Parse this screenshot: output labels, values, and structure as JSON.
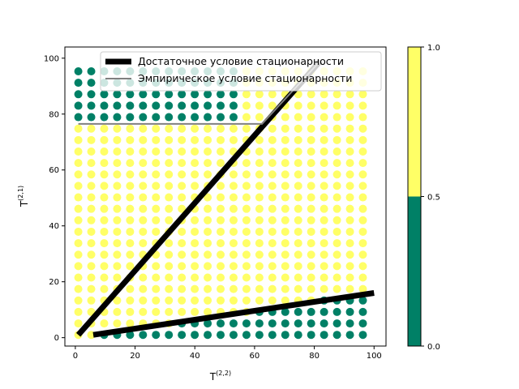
{
  "chart_data": {
    "type": "scatter",
    "title": "",
    "xlabel": "T",
    "xlabel_sup": "(2,2)",
    "ylabel": "T",
    "ylabel_sup": "(2,1)",
    "xlim": [
      -3.5,
      104
    ],
    "ylim": [
      -3,
      104
    ],
    "xticks": [
      0,
      20,
      40,
      60,
      80,
      100
    ],
    "yticks": [
      0,
      20,
      40,
      60,
      80,
      100
    ],
    "grid": false,
    "legend_position": "top-right",
    "scatter": {
      "grid_x_start": 1,
      "grid_x_step": 4.33,
      "grid_x_count": 23,
      "grid_y_start": 1,
      "grid_y_step": 4.1,
      "grid_y_count": 24,
      "value_colors": {
        "0": "#008066",
        "1": "#ffff66"
      },
      "rule": "value = 1 (yellow) when the point lies between the two sufficient-condition lines and outside the upper-left empirical region; otherwise 0 (green)"
    },
    "series": [
      {
        "name": "Достаточное условие стационарности",
        "color": "#000000",
        "style": "thick",
        "segments": [
          {
            "x": [
              1,
              82
            ],
            "y": [
              1,
              99
            ]
          },
          {
            "x": [
              6,
              100
            ],
            "y": [
              1,
              16
            ]
          }
        ]
      },
      {
        "name": "Эмпирическое условие стационарности",
        "color": "#808080",
        "style": "thin",
        "segments": [
          {
            "x": [
              1,
              62.5,
              82
            ],
            "y": [
              76.5,
              76.5,
              99
            ]
          }
        ]
      }
    ],
    "colorbar": {
      "ticks": [
        "0.0",
        "0.5",
        "1.0"
      ],
      "low_color": "#008066",
      "high_color": "#ffff66"
    }
  }
}
